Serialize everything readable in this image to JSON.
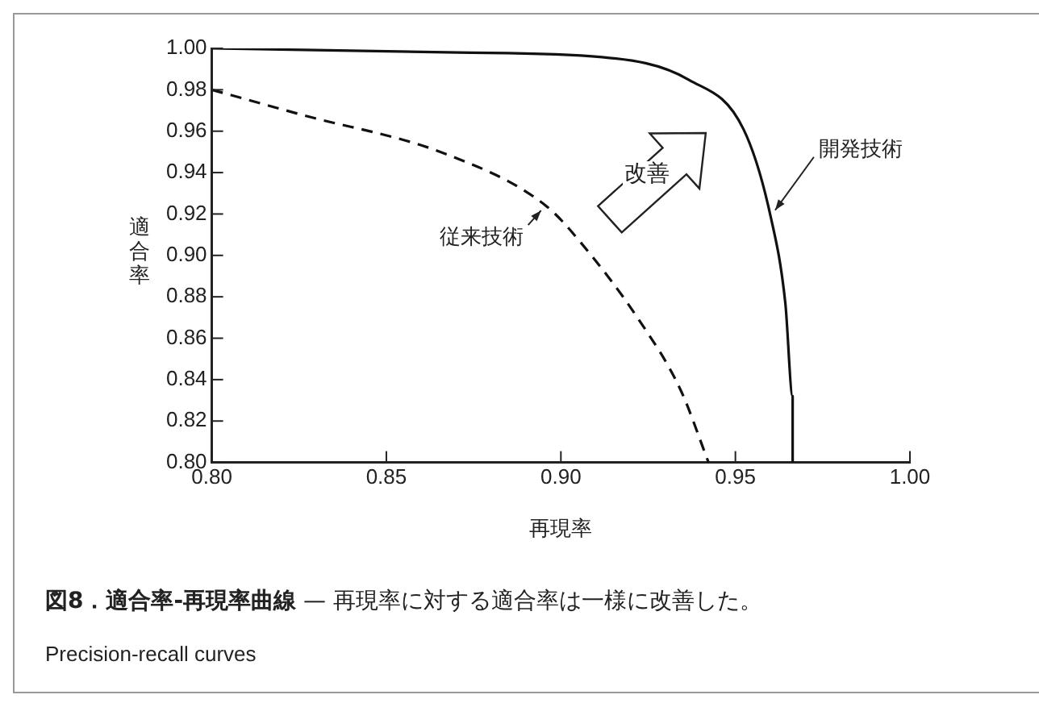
{
  "chart_data": {
    "type": "line",
    "title": "図8．適合率-再現率曲線",
    "subtitle": "— 再現率に対する適合率は一様に改善した。",
    "xlabel": "再現率",
    "ylabel": "適合率",
    "annotations": [
      "改善",
      "Precision-recall curves"
    ],
    "series": [
      {
        "name": "従来技術",
        "color": "#111111",
        "line_style": "dashed",
        "x": [
          0.8,
          0.8256,
          0.867,
          0.8957,
          0.9058,
          0.9223,
          0.9343,
          0.9423
        ],
        "values": [
          0.98,
          0.968,
          0.949,
          0.924,
          0.906,
          0.869,
          0.835,
          0.8
        ]
      },
      {
        "name": "開発技術",
        "color": "#111111",
        "line_style": "solid",
        "x": [
          0.8,
          0.8707,
          0.9118,
          0.9368,
          0.9523,
          0.96,
          0.9643,
          0.9664,
          0.9664
        ],
        "values": [
          1.0,
          0.998,
          0.9958,
          0.9847,
          0.961,
          0.9195,
          0.877,
          0.832,
          0.8
        ]
      }
    ],
    "xlim": [
      0.8,
      1.0
    ],
    "xticks": [
      {
        "value": 0.8,
        "label": "0.80"
      },
      {
        "value": 0.85,
        "label": "0.85"
      },
      {
        "value": 0.9,
        "label": "0.90"
      },
      {
        "value": 0.95,
        "label": "0.95"
      },
      {
        "value": 1.0,
        "label": "1.00"
      }
    ],
    "ylim": [
      0.8,
      1.0
    ],
    "yticks": [
      {
        "value": 0.8,
        "label": "0.80"
      },
      {
        "value": 0.82,
        "label": "0.82"
      },
      {
        "value": 0.84,
        "label": "0.84"
      },
      {
        "value": 0.86,
        "label": "0.86"
      },
      {
        "value": 0.88,
        "label": "0.88"
      },
      {
        "value": 0.9,
        "label": "0.90"
      },
      {
        "value": 0.92,
        "label": "0.92"
      },
      {
        "value": 0.94,
        "label": "0.94"
      },
      {
        "value": 0.96,
        "label": "0.96"
      },
      {
        "value": 0.98,
        "label": "0.98"
      },
      {
        "value": 1.0,
        "label": "1.00"
      }
    ],
    "grid": false,
    "legend": false,
    "marker": "none"
  }
}
